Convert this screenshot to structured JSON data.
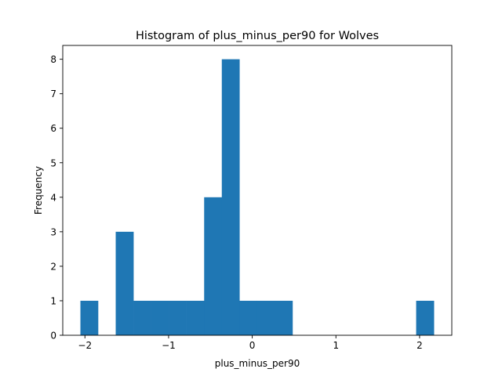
{
  "chart_data": {
    "type": "bar",
    "title": "Histogram of plus_minus_per90 for Wolves",
    "xlabel": "plus_minus_per90",
    "ylabel": "Frequency",
    "xlim": [
      -2.265,
      2.385
    ],
    "ylim": [
      0,
      8.4
    ],
    "xticks": [
      -2,
      -1,
      0,
      1,
      2
    ],
    "xtick_labels": [
      "−2",
      "−1",
      "0",
      "1",
      "2"
    ],
    "yticks": [
      0,
      1,
      2,
      3,
      4,
      5,
      6,
      7,
      8
    ],
    "ytick_labels": [
      "0",
      "1",
      "2",
      "3",
      "4",
      "5",
      "6",
      "7",
      "8"
    ],
    "bin_edges": [
      -2.054,
      -1.843,
      -1.632,
      -1.42,
      -1.209,
      -0.998,
      -0.787,
      -0.575,
      -0.364,
      -0.153,
      0.058,
      0.27,
      0.481,
      0.692,
      0.903,
      1.114,
      1.326,
      1.537,
      1.748,
      1.959,
      2.171
    ],
    "counts": [
      1,
      0,
      3,
      1,
      1,
      1,
      1,
      4,
      8,
      1,
      1,
      1,
      0,
      0,
      0,
      0,
      0,
      0,
      0,
      1
    ],
    "bar_color": "#1f77b4",
    "grid": false,
    "legend": "none"
  }
}
